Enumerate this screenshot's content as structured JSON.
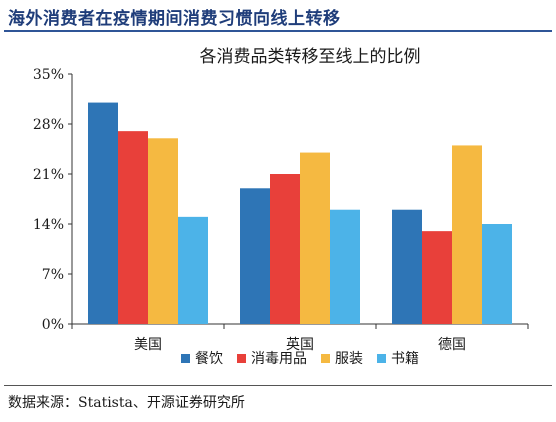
{
  "header": {
    "title": "海外消费者在疫情期间消费习惯向线上转移"
  },
  "footer": {
    "source": "数据来源：Statista、开源证券研究所"
  },
  "colors": {
    "title": "#1f3d7a",
    "rule": "#2f5597",
    "axis": "#333333"
  },
  "chart_data": {
    "type": "bar",
    "title": "各消费品类转移至线上的比例",
    "xlabel": "",
    "ylabel": "",
    "categories": [
      "美国",
      "英国",
      "德国"
    ],
    "ylim": [
      0,
      35
    ],
    "yticks": [
      0,
      7,
      14,
      21,
      28,
      35
    ],
    "ytick_labels": [
      "0%",
      "7%",
      "14%",
      "21%",
      "28%",
      "35%"
    ],
    "grid": false,
    "legend": "bottom",
    "series": [
      {
        "name": "餐饮",
        "color": "#2e75b6",
        "values": [
          31,
          19,
          16
        ]
      },
      {
        "name": "消毒用品",
        "color": "#e8403a",
        "values": [
          27,
          21,
          13
        ]
      },
      {
        "name": "服装",
        "color": "#f5b941",
        "values": [
          26,
          24,
          25
        ]
      },
      {
        "name": "书籍",
        "color": "#4cb3e8",
        "values": [
          15,
          16,
          14
        ]
      }
    ]
  }
}
